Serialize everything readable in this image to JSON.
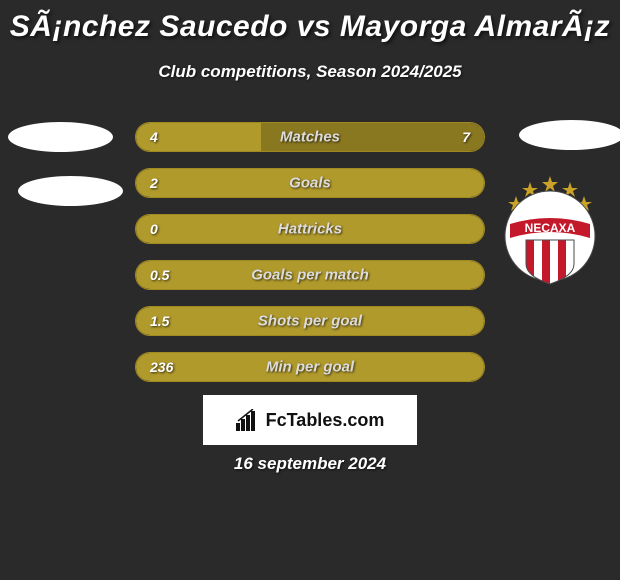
{
  "header": {
    "title": "SÃ¡nchez Saucedo vs Mayorga AlmarÃ¡z",
    "subtitle": "Club competitions, Season 2024/2025"
  },
  "colors": {
    "background": "#2a2a2a",
    "bar_border": "#ae9421",
    "bar_fill": "#b19a2c",
    "bar_fill_right": "#8a7820",
    "text": "#ffffff",
    "label_text": "#dcdcdc",
    "brand_bg": "#ffffff",
    "brand_text": "#111111"
  },
  "bars": [
    {
      "left_value": "4",
      "right_value": "7",
      "label": "Matches",
      "fill_percent": 36,
      "show_right": true
    },
    {
      "left_value": "2",
      "right_value": "",
      "label": "Goals",
      "fill_percent": 100,
      "show_right": false
    },
    {
      "left_value": "0",
      "right_value": "",
      "label": "Hattricks",
      "fill_percent": 100,
      "show_right": false
    },
    {
      "left_value": "0.5",
      "right_value": "",
      "label": "Goals per match",
      "fill_percent": 100,
      "show_right": false
    },
    {
      "left_value": "1.5",
      "right_value": "",
      "label": "Shots per goal",
      "fill_percent": 100,
      "show_right": false
    },
    {
      "left_value": "236",
      "right_value": "",
      "label": "Min per goal",
      "fill_percent": 100,
      "show_right": false
    }
  ],
  "brand": {
    "text": "FcTables.com"
  },
  "footer": {
    "date": "16 september 2024"
  },
  "club_badge": {
    "name": "NECAXA",
    "circle_color": "#ffffff",
    "banner_color": "#c4182b",
    "stripe_red": "#c4182b",
    "star_color": "#c9a227"
  },
  "typography": {
    "title_fontsize": 30,
    "subtitle_fontsize": 17,
    "bar_value_fontsize": 14,
    "bar_label_fontsize": 15,
    "brand_fontsize": 18,
    "date_fontsize": 17,
    "font_family": "Arial"
  }
}
